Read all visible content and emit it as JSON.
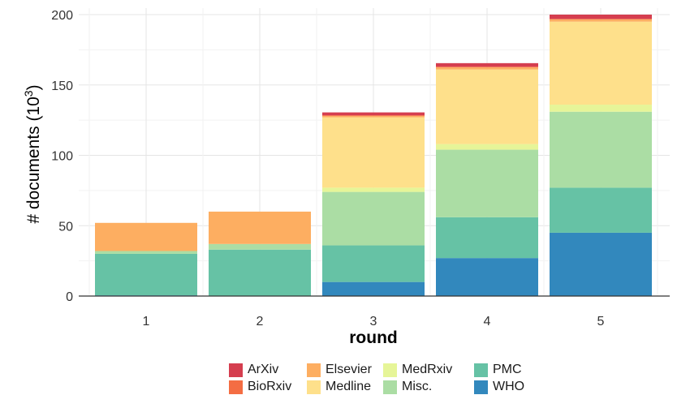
{
  "chart_data": {
    "type": "bar",
    "stacked": true,
    "xlabel": "round",
    "ylabel_prefix": "# documents (10",
    "ylabel_exponent": "3",
    "ylabel_suffix": ")",
    "categories": [
      "1",
      "2",
      "3",
      "4",
      "5"
    ],
    "ylim": [
      0,
      200
    ],
    "yticks": [
      "0",
      "50",
      "100",
      "150",
      "200"
    ],
    "grid": true,
    "legend_position": "bottom",
    "series": [
      {
        "name": "WHO",
        "color": "#3288bd",
        "values": [
          0.5,
          0,
          10,
          27,
          45
        ]
      },
      {
        "name": "PMC",
        "color": "#66c2a5",
        "values": [
          29.5,
          33,
          26,
          29,
          32
        ]
      },
      {
        "name": "Misc.",
        "color": "#abdda4",
        "values": [
          2,
          4,
          38,
          48,
          54
        ]
      },
      {
        "name": "MedRxiv",
        "color": "#e6f598",
        "values": [
          0,
          0,
          3,
          4,
          5
        ]
      },
      {
        "name": "Medline",
        "color": "#fee08b",
        "values": [
          0,
          0,
          50,
          53,
          59
        ]
      },
      {
        "name": "Elsevier",
        "color": "#fdae61",
        "values": [
          20,
          23,
          1,
          1.5,
          1.5
        ]
      },
      {
        "name": "BioRxiv",
        "color": "#f46d43",
        "values": [
          0,
          0,
          0.5,
          0.5,
          0.5
        ]
      },
      {
        "name": "ArXiv",
        "color": "#d53e4f",
        "values": [
          0,
          0,
          2,
          2.5,
          3
        ]
      }
    ],
    "legend_order": [
      "ArXiv",
      "BioRxiv",
      "Elsevier",
      "Medline",
      "MedRxiv",
      "Misc.",
      "PMC",
      "WHO"
    ]
  }
}
